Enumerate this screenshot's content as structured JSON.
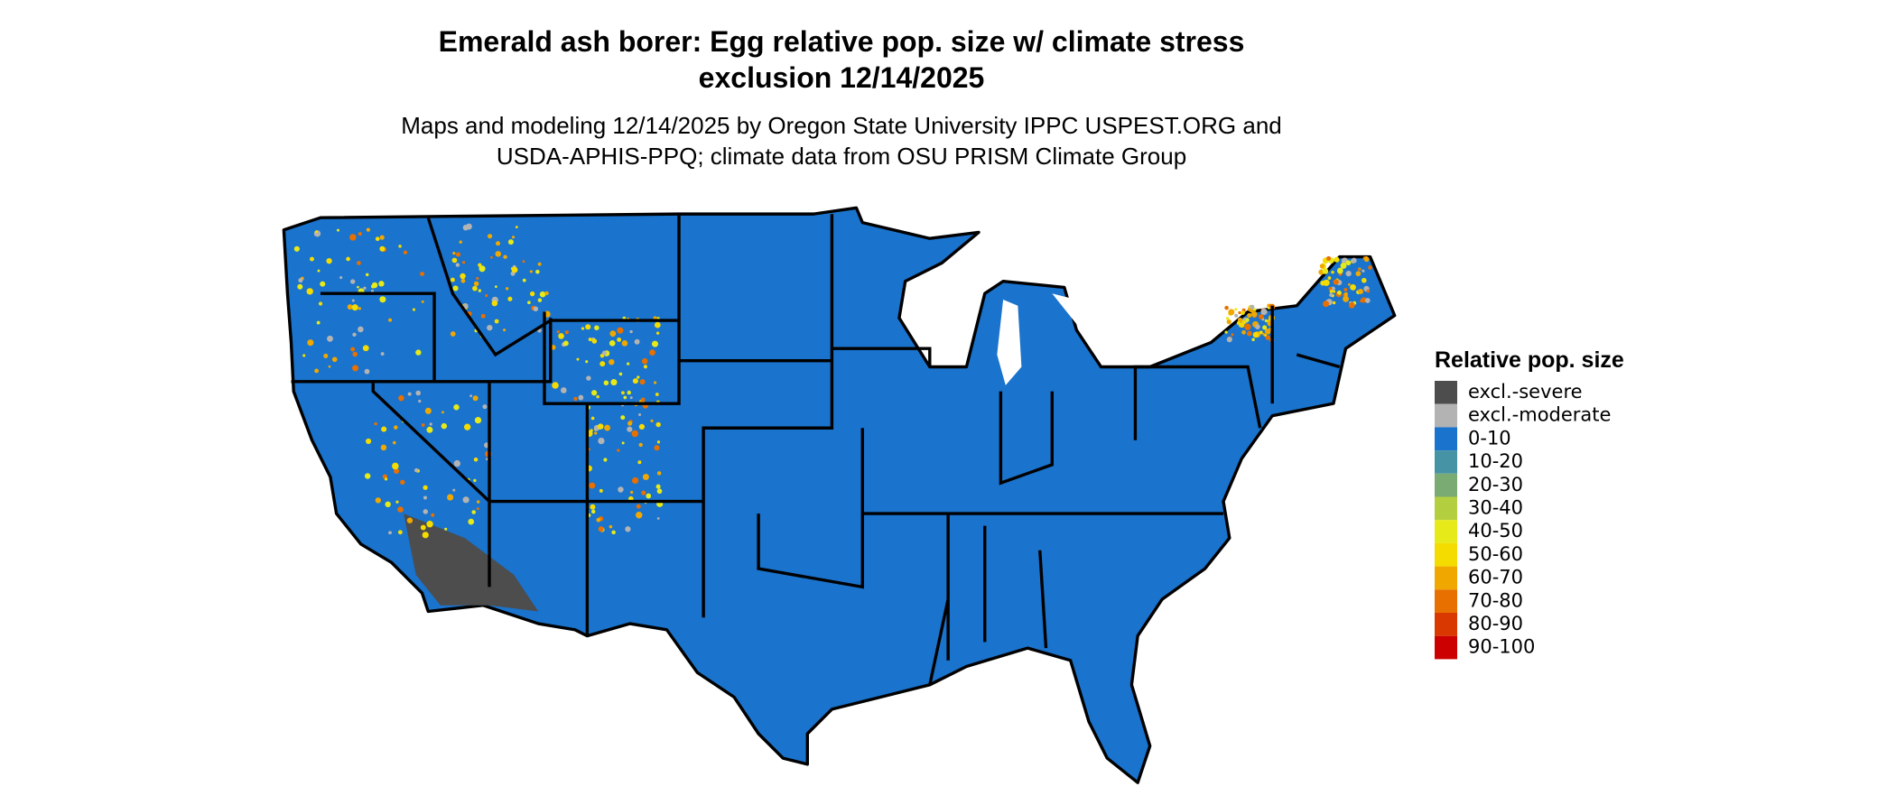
{
  "title": [
    "Emerald ash borer: Egg relative pop. size w/ climate stress",
    "exclusion 12/14/2025"
  ],
  "subtitle": [
    "Maps and modeling 12/14/2025 by Oregon State University IPPC USPEST.ORG and",
    "USDA-APHIS-PPQ; climate data from OSU PRISM Climate Group"
  ],
  "legend": {
    "title": "Relative pop. size",
    "items": [
      {
        "label": "excl.-severe",
        "color": "#4d4d4d"
      },
      {
        "label": "excl.-moderate",
        "color": "#b3b3b3"
      },
      {
        "label": "0-10",
        "color": "#1a73cc"
      },
      {
        "label": "10-20",
        "color": "#4793a6"
      },
      {
        "label": "20-30",
        "color": "#7aab72"
      },
      {
        "label": "30-40",
        "color": "#b3cf40"
      },
      {
        "label": "40-50",
        "color": "#e6ea19"
      },
      {
        "label": "50-60",
        "color": "#f5dc00"
      },
      {
        "label": "60-70",
        "color": "#f0a800"
      },
      {
        "label": "70-80",
        "color": "#e87000"
      },
      {
        "label": "80-90",
        "color": "#d93800"
      },
      {
        "label": "90-100",
        "color": "#cc0000"
      }
    ]
  }
}
